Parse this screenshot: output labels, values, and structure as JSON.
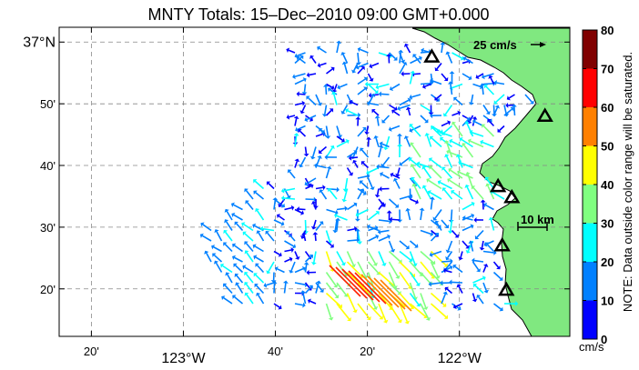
{
  "title": "MNTY Totals: 15–Dec–2010 09:00 GMT+0.000",
  "axes": {
    "lon_ticks": [
      {
        "value": -123.3333,
        "label": "20'",
        "big": false
      },
      {
        "value": -123.0,
        "label": "123°W",
        "big": true
      },
      {
        "value": -122.6667,
        "label": "40'",
        "big": false
      },
      {
        "value": -122.3333,
        "label": "20'",
        "big": false
      },
      {
        "value": -122.0,
        "label": "122°W",
        "big": true
      }
    ],
    "lat_ticks": [
      {
        "value": 37.0,
        "label": "37°N",
        "big": true
      },
      {
        "value": 36.8333,
        "label": "50'",
        "big": false
      },
      {
        "value": 36.6667,
        "label": "40'",
        "big": false
      },
      {
        "value": 36.5,
        "label": "30'",
        "big": false
      },
      {
        "value": 36.3333,
        "label": "20'",
        "big": false
      }
    ],
    "lon_range": [
      -123.45,
      -121.6
    ],
    "lat_range": [
      36.205,
      37.04
    ],
    "grid": "dashed"
  },
  "scale_arrow": {
    "label": "25 cm/s"
  },
  "scale_bar": {
    "label": "10 km"
  },
  "colorbar": {
    "ticks": [
      "0",
      "10",
      "20",
      "30",
      "40",
      "50",
      "60",
      "70",
      "80"
    ],
    "unit": "cm/s",
    "note": "NOTE: Data outside color range will be saturated.",
    "colors": [
      "#0000ff",
      "#0080ff",
      "#00ffff",
      "#80ff80",
      "#ffff00",
      "#ff8000",
      "#ff0000",
      "#800000"
    ]
  },
  "land_color": "#80e880",
  "stations": [
    {
      "lon": -122.1,
      "lat": 36.96
    },
    {
      "lon": -121.69,
      "lat": 36.8
    },
    {
      "lon": -121.86,
      "lat": 36.61
    },
    {
      "lon": -121.81,
      "lat": 36.58
    },
    {
      "lon": -121.845,
      "lat": 36.45
    },
    {
      "lon": -121.83,
      "lat": 36.33
    }
  ]
}
